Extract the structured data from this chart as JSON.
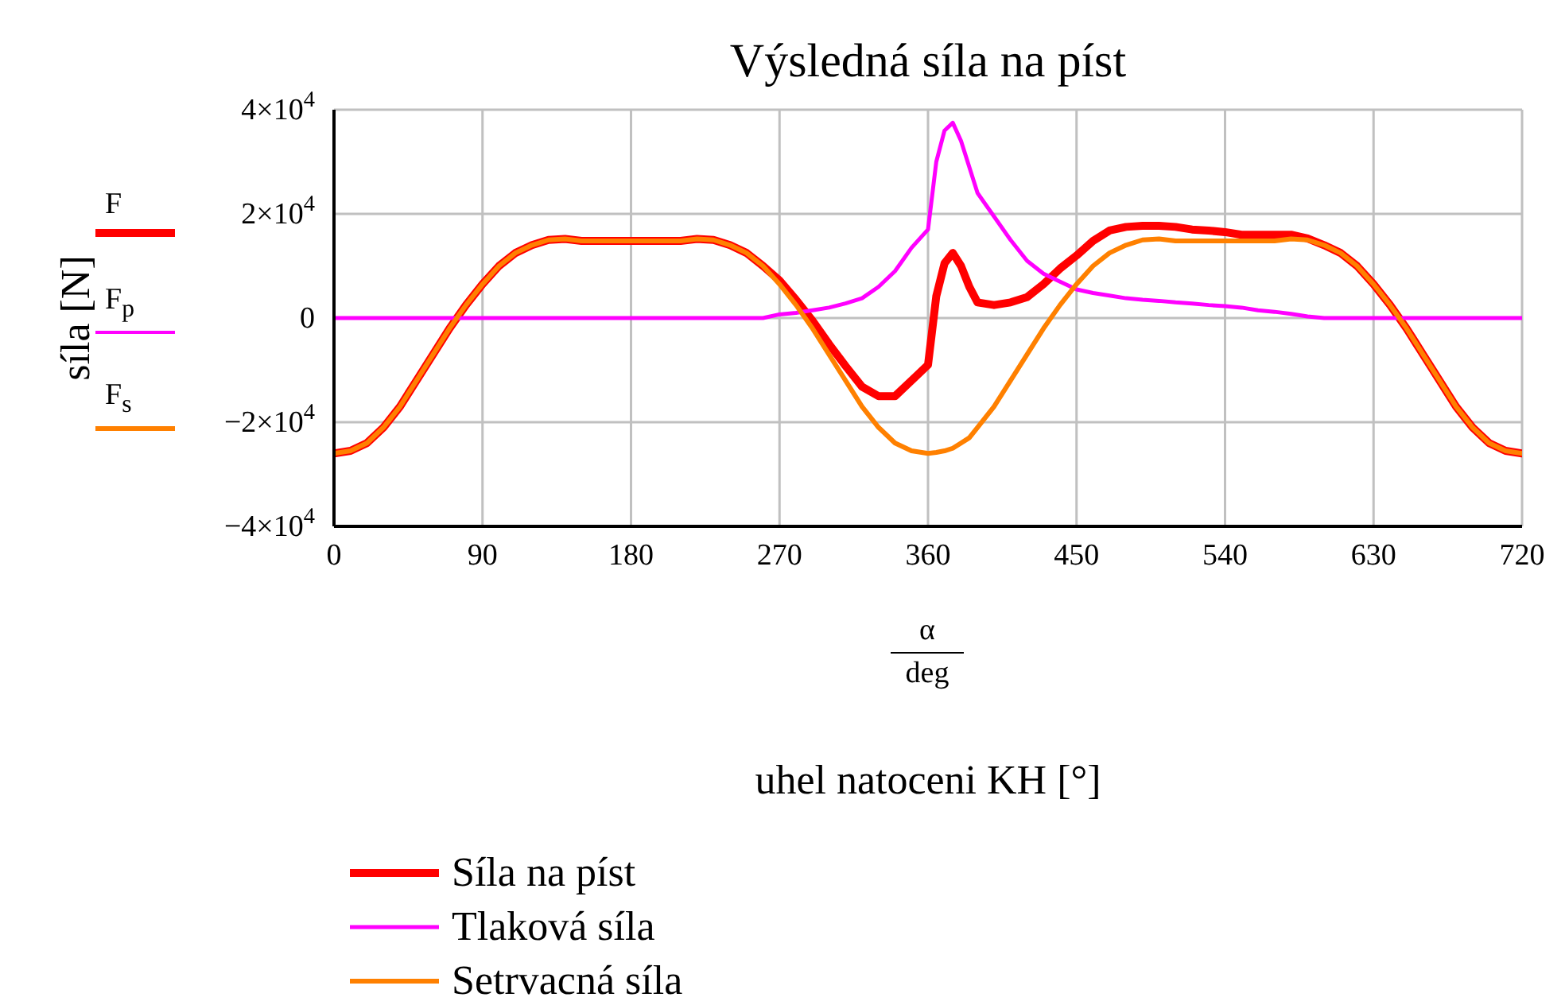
{
  "chart_data": {
    "type": "line",
    "title": "Výsledná síla na píst",
    "xlabel": "uhel natoceni KH [°]",
    "ylabel": "síla [N]",
    "annotations": [
      "α",
      "deg",
      "F",
      "F$_{p}$",
      "F$_{s}$"
    ],
    "x": [
      0,
      10,
      20,
      30,
      40,
      50,
      60,
      70,
      80,
      90,
      100,
      110,
      120,
      130,
      140,
      150,
      160,
      170,
      180,
      190,
      200,
      210,
      220,
      230,
      240,
      250,
      260,
      270,
      280,
      290,
      300,
      310,
      320,
      330,
      340,
      350,
      360,
      365,
      370,
      375,
      380,
      385,
      390,
      400,
      410,
      420,
      430,
      440,
      450,
      460,
      470,
      480,
      490,
      500,
      510,
      520,
      530,
      540,
      550,
      560,
      570,
      580,
      590,
      600,
      610,
      620,
      630,
      640,
      650,
      660,
      670,
      680,
      690,
      700,
      710,
      720
    ],
    "series": [
      {
        "name": "Síla na píst",
        "color": "#ff0000",
        "values": [
          -26000,
          -25500,
          -24000,
          -21000,
          -17000,
          -12000,
          -7000,
          -2000,
          2500,
          6500,
          10000,
          12500,
          14000,
          15000,
          15200,
          14800,
          14800,
          14800,
          14800,
          14800,
          14800,
          14800,
          15200,
          15000,
          14000,
          12500,
          10000,
          7200,
          3500,
          -500,
          -5000,
          -9200,
          -13200,
          -15000,
          -15000,
          -12000,
          -9000,
          4200,
          10500,
          12500,
          10000,
          6000,
          3000,
          2500,
          3000,
          4000,
          6500,
          9500,
          12000,
          14800,
          16800,
          17500,
          17700,
          17700,
          17500,
          17000,
          16800,
          16500,
          16000,
          16000,
          16000,
          16000,
          15300,
          14000,
          12500,
          10000,
          6500,
          2500,
          -2000,
          -7000,
          -12000,
          -17000,
          -21000,
          -24000,
          -25500,
          -26000
        ]
      },
      {
        "name": "Tlaková síla",
        "color": "#ff00ff",
        "values": [
          0,
          0,
          0,
          0,
          0,
          0,
          0,
          0,
          0,
          0,
          0,
          0,
          0,
          0,
          0,
          0,
          0,
          0,
          0,
          0,
          0,
          0,
          0,
          0,
          0,
          0,
          0,
          700,
          1000,
          1500,
          2000,
          2800,
          3800,
          6000,
          9000,
          13500,
          17000,
          30000,
          36000,
          37500,
          34000,
          29000,
          24000,
          19500,
          15000,
          11000,
          8500,
          7000,
          5500,
          4800,
          4300,
          3800,
          3500,
          3300,
          3000,
          2800,
          2500,
          2300,
          2000,
          1500,
          1200,
          800,
          300,
          0,
          0,
          0,
          0,
          0,
          0,
          0,
          0,
          0,
          0,
          0,
          0,
          0
        ]
      },
      {
        "name": "Setrvacná síla",
        "color": "#ff8000",
        "values": [
          -26000,
          -25500,
          -24000,
          -21000,
          -17000,
          -12000,
          -7000,
          -2000,
          2500,
          6500,
          10000,
          12500,
          14000,
          15000,
          15200,
          14800,
          14800,
          14800,
          14800,
          14800,
          14800,
          14800,
          15200,
          15000,
          14000,
          12500,
          10000,
          6500,
          2500,
          -2000,
          -7000,
          -12000,
          -17000,
          -21000,
          -24000,
          -25500,
          -26000,
          -25800,
          -25500,
          -25000,
          -24000,
          -23000,
          -21000,
          -17000,
          -12000,
          -7000,
          -2000,
          2500,
          6500,
          10000,
          12500,
          14000,
          15000,
          15200,
          14800,
          14800,
          14800,
          14800,
          14800,
          14800,
          14800,
          15200,
          15000,
          14000,
          12500,
          10000,
          6500,
          2500,
          -2000,
          -7000,
          -12000,
          -17000,
          -21000,
          -24000,
          -25500,
          -26000
        ]
      }
    ],
    "xlim": [
      0,
      720
    ],
    "xticks": [
      0,
      90,
      180,
      270,
      360,
      450,
      540,
      630,
      720
    ],
    "ylim": [
      -40000,
      40000
    ],
    "yticks": [
      {
        "value": -40000,
        "label": "−4×10$^{4}$"
      },
      {
        "value": -20000,
        "label": "−2×10$^{4}$"
      },
      {
        "value": 0,
        "label": "0"
      },
      {
        "value": 20000,
        "label": "2×10$^{4}$"
      },
      {
        "value": 40000,
        "label": "4×10$^{4}$"
      }
    ],
    "grid": true,
    "legend": "bottom",
    "marker": "none",
    "line_style": "solid"
  }
}
